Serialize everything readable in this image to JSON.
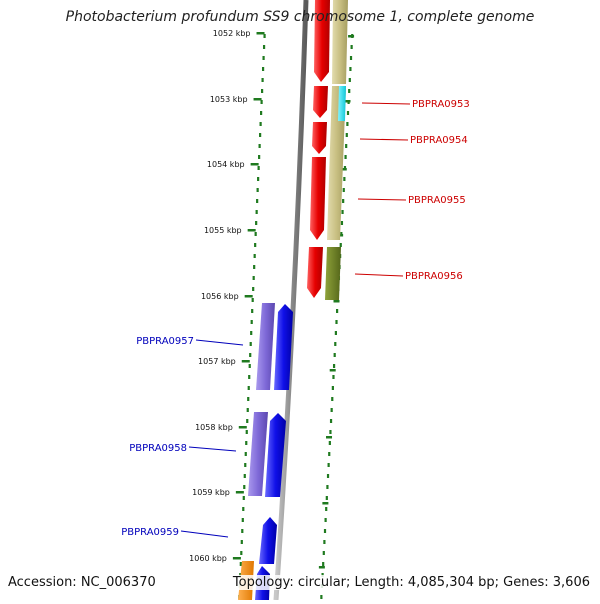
{
  "title": "Photobacterium profundum SS9 chromosome 1, complete genome",
  "footer": {
    "accession": "Accession: NC_006370",
    "summary": "Topology: circular; Length: 4,085,304 bp; Genes: 3,606"
  },
  "colors": {
    "backbone": "#8c8c8c",
    "ticks": "#1f7a1f",
    "red_track": "#e60000",
    "khaki_track": "#c8bf82",
    "cyan_gene": "#19e0f0",
    "olive_gene": "#6b7f1c",
    "blue_track": "#1010e8",
    "lavender_track": "#7f6ad8",
    "orange_gene": "#f08a10",
    "label_red": "#cc0000",
    "label_blue": "#0000bb"
  },
  "ticks": [
    "1052 kbp",
    "1053 kbp",
    "1054 kbp",
    "1055 kbp",
    "1056 kbp",
    "1057 kbp",
    "1058 kbp",
    "1059 kbp",
    "1060 kbp"
  ],
  "gene_labels": [
    {
      "text": "PBPRA0953",
      "side": "right",
      "color": "#cc0000"
    },
    {
      "text": "PBPRA0954",
      "side": "right",
      "color": "#cc0000"
    },
    {
      "text": "PBPRA0955",
      "side": "right",
      "color": "#cc0000"
    },
    {
      "text": "PBPRA0956",
      "side": "right",
      "color": "#cc0000"
    },
    {
      "text": "PBPRA0957",
      "side": "left",
      "color": "#0000bb"
    },
    {
      "text": "PBPRA0958",
      "side": "left",
      "color": "#0000bb"
    },
    {
      "text": "PBPRA0959",
      "side": "left",
      "color": "#0000bb"
    }
  ]
}
